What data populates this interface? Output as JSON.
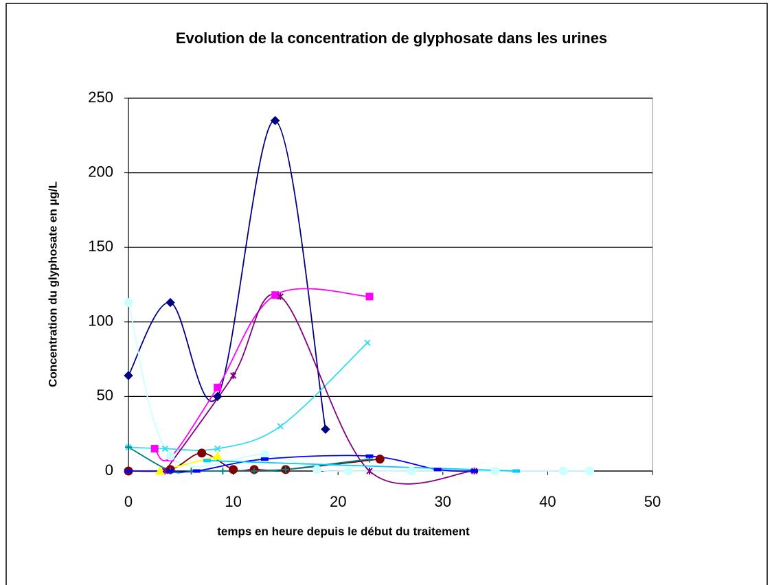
{
  "chart_data": {
    "type": "line",
    "title": "Evolution de la concentration de glyphosate dans les urines",
    "x_label": "temps en heure depuis le début du traitement",
    "y_label": "Concentration du glyphosate en µg/L",
    "xlim": [
      0,
      50
    ],
    "xticks": [
      0,
      10,
      20,
      30,
      40,
      50
    ],
    "ylim": [
      0,
      250
    ],
    "yticks": [
      0,
      50,
      100,
      150,
      200,
      250
    ],
    "grid": true,
    "smooth": true,
    "series": [
      {
        "color": "#000080",
        "marker": "diamond",
        "x": [
          0,
          4,
          8.5,
          14,
          18.8
        ],
        "values": [
          64,
          113,
          50,
          235,
          28
        ]
      },
      {
        "color": "#ff00ff",
        "marker": "square",
        "x": [
          2.5,
          4,
          8.5,
          14,
          23
        ],
        "values": [
          15,
          9,
          56,
          118,
          117
        ]
      },
      {
        "color": "#33ddee",
        "marker": "x",
        "x": [
          0,
          3.5,
          8.5,
          14.5,
          22.8
        ],
        "values": [
          16,
          15,
          15,
          30,
          86
        ]
      },
      {
        "color": "#800080",
        "marker": "star",
        "x": [
          3.5,
          10,
          14.5,
          23,
          33
        ],
        "values": [
          0,
          64,
          117,
          0,
          0
        ]
      },
      {
        "color": "#ccffff",
        "marker": "circle",
        "x": [
          0,
          4,
          13,
          18,
          21,
          27,
          35,
          41.5,
          44
        ],
        "values": [
          113,
          10,
          11,
          1,
          0,
          0,
          0,
          0,
          0
        ]
      },
      {
        "color": "#800000",
        "marker": "circle",
        "x": [
          0,
          4,
          7,
          10,
          12,
          15,
          24
        ],
        "values": [
          0,
          1,
          12,
          1,
          1,
          1,
          8
        ]
      },
      {
        "color": "#008080",
        "marker": "plus",
        "x": [
          0,
          4,
          6,
          9,
          12,
          15,
          23
        ],
        "values": [
          16,
          0,
          0,
          0,
          0,
          1,
          8
        ]
      },
      {
        "color": "#0000ff",
        "marker": "dash",
        "x": [
          0,
          4,
          6.5,
          13,
          23,
          29.5,
          33
        ],
        "values": [
          0,
          0,
          0,
          8,
          10,
          1,
          0
        ]
      },
      {
        "color": "#ffff00",
        "marker": "triangle",
        "x": [
          3,
          8.5
        ],
        "values": [
          0,
          10
        ]
      },
      {
        "color": "#00ccff",
        "marker": "dash",
        "x": [
          7.5,
          37
        ],
        "values": [
          7,
          0
        ]
      }
    ]
  }
}
